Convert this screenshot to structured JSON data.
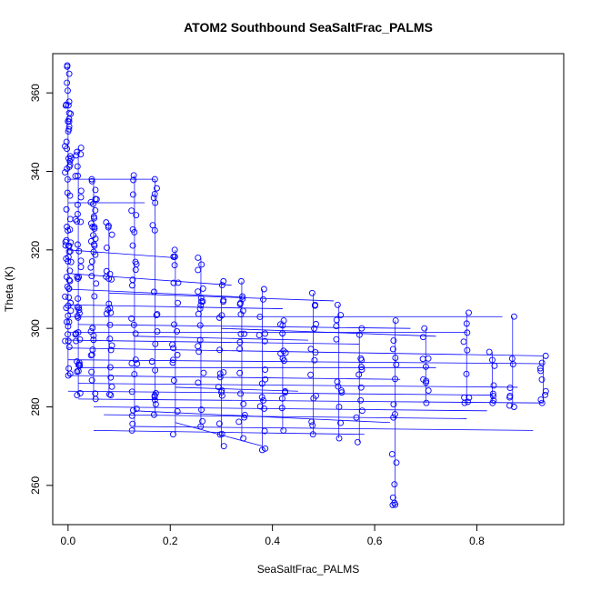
{
  "chart_data": {
    "type": "scatter",
    "title": "ATOM2 Southbound SeaSaltFrac_PALMS",
    "xlabel": "SeaSaltFrac_PALMS",
    "ylabel": "Theta (K)",
    "xlim": [
      -0.03,
      0.97
    ],
    "ylim": [
      250,
      370
    ],
    "xticks": [
      "0.0",
      "0.2",
      "0.4",
      "0.6",
      "0.8"
    ],
    "yticks": [
      "260",
      "280",
      "300",
      "320",
      "340",
      "360"
    ],
    "grid": false,
    "legend": "none",
    "marker": "open-circle",
    "color": "#0000ff",
    "clusters": [
      {
        "x": 0.0,
        "y_range": [
          288,
          367
        ],
        "n": 70
      },
      {
        "x": 0.02,
        "y_range": [
          283,
          346
        ],
        "n": 40
      },
      {
        "x": 0.05,
        "y_range": [
          282,
          338
        ],
        "n": 35
      },
      {
        "x": 0.08,
        "y_range": [
          283,
          327
        ],
        "n": 22
      },
      {
        "x": 0.13,
        "y_range": [
          274,
          339
        ],
        "n": 24
      },
      {
        "x": 0.17,
        "y_range": [
          278,
          338
        ],
        "n": 18
      },
      {
        "x": 0.21,
        "y_range": [
          273,
          320
        ],
        "n": 16
      },
      {
        "x": 0.26,
        "y_range": [
          275,
          318
        ],
        "n": 18
      },
      {
        "x": 0.3,
        "y_range": [
          270,
          312
        ],
        "n": 16
      },
      {
        "x": 0.34,
        "y_range": [
          272,
          312
        ],
        "n": 16
      },
      {
        "x": 0.38,
        "y_range": [
          269,
          310
        ],
        "n": 14
      },
      {
        "x": 0.42,
        "y_range": [
          274,
          302
        ],
        "n": 12
      },
      {
        "x": 0.48,
        "y_range": [
          273,
          309
        ],
        "n": 12
      },
      {
        "x": 0.53,
        "y_range": [
          272,
          306
        ],
        "n": 10
      },
      {
        "x": 0.57,
        "y_range": [
          271,
          300
        ],
        "n": 10
      },
      {
        "x": 0.64,
        "y_range": [
          255,
          302
        ],
        "n": 14
      },
      {
        "x": 0.7,
        "y_range": [
          281,
          300
        ],
        "n": 8
      },
      {
        "x": 0.78,
        "y_range": [
          281,
          304
        ],
        "n": 8
      },
      {
        "x": 0.83,
        "y_range": [
          281,
          294
        ],
        "n": 6
      },
      {
        "x": 0.87,
        "y_range": [
          280,
          303
        ],
        "n": 6
      },
      {
        "x": 0.93,
        "y_range": [
          281,
          293
        ],
        "n": 7
      }
    ],
    "lines": [
      [
        0.0,
        338,
        0.17,
        338
      ],
      [
        0.0,
        332,
        0.15,
        332
      ],
      [
        0.0,
        320,
        0.21,
        318
      ],
      [
        0.0,
        314,
        0.32,
        311
      ],
      [
        0.0,
        310,
        0.34,
        308
      ],
      [
        0.0,
        306,
        0.42,
        305
      ],
      [
        0.0,
        303,
        0.85,
        303
      ],
      [
        0.02,
        301,
        0.67,
        300
      ],
      [
        0.0,
        299,
        0.78,
        299
      ],
      [
        0.0,
        297,
        0.57,
        296
      ],
      [
        0.0,
        295,
        0.93,
        293
      ],
      [
        0.0,
        292,
        0.93,
        291
      ],
      [
        0.02,
        290,
        0.72,
        290
      ],
      [
        0.0,
        288,
        0.65,
        287
      ],
      [
        0.02,
        286,
        0.88,
        285
      ],
      [
        0.0,
        284,
        0.83,
        283
      ],
      [
        0.02,
        282,
        0.93,
        281
      ],
      [
        0.05,
        280,
        0.82,
        279
      ],
      [
        0.07,
        278,
        0.78,
        277
      ],
      [
        0.13,
        275,
        0.91,
        274
      ],
      [
        0.05,
        274,
        0.58,
        273
      ],
      [
        0.21,
        276,
        0.38,
        270
      ],
      [
        0.13,
        279,
        0.63,
        276
      ],
      [
        0.21,
        285,
        0.45,
        284
      ],
      [
        0.13,
        298,
        0.47,
        297
      ],
      [
        0.08,
        309,
        0.52,
        307
      ],
      [
        0.3,
        300,
        0.72,
        298
      ]
    ]
  }
}
